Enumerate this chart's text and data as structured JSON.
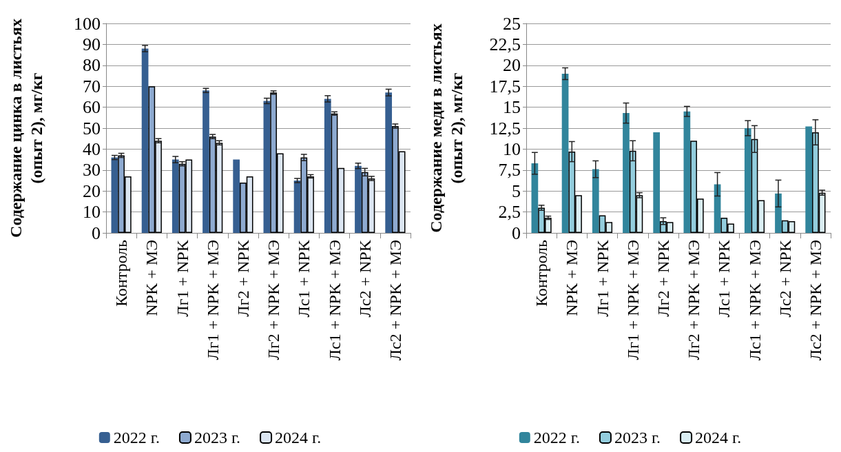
{
  "chart_data": [
    {
      "type": "bar",
      "ylabel": "Содержание цинка в листьях\n(опыт 2), мг/кг",
      "categories": [
        "Контроль",
        "NPK + МЭ",
        "Лг1 + NPK",
        "Лг1 + NPK + МЭ",
        "Лг2 + NPK",
        "Лг2 + NPK + МЭ",
        "Лс1 + NPK",
        "Лс1 + NPK + МЭ",
        "Лс2 + NPK",
        "Лс2 + NPK + МЭ"
      ],
      "series": [
        {
          "name": "2022 г.",
          "color": "#365f91",
          "values": [
            36,
            88,
            35,
            68,
            35,
            63,
            25,
            64,
            32,
            67
          ],
          "errors": [
            1,
            1.5,
            1.5,
            1,
            null,
            1.3,
            1,
            1.5,
            1.3,
            1.6
          ]
        },
        {
          "name": "2023 г.",
          "color": "#8eaad0",
          "values": [
            37,
            70,
            33,
            46,
            24,
            67,
            36,
            57,
            29,
            51
          ],
          "errors": [
            1,
            null,
            1,
            1,
            null,
            0.8,
            1.5,
            0.8,
            1.8,
            1
          ]
        },
        {
          "name": "2024 г.",
          "color": "#dce6f2",
          "values": [
            27,
            44,
            35,
            43,
            27,
            38,
            27,
            31,
            26,
            39
          ],
          "errors": [
            null,
            1,
            null,
            1,
            null,
            null,
            0.8,
            null,
            1,
            null
          ]
        }
      ],
      "ylim": [
        0,
        100
      ],
      "yticks": [
        0,
        10,
        20,
        30,
        40,
        50,
        60,
        70,
        80,
        90,
        100
      ],
      "grid": "y",
      "legend": "bottom"
    },
    {
      "type": "bar",
      "ylabel": "Содержание меди в листьях\n(опыт 2), мг/кг",
      "categories": [
        "Контроль",
        "NPK + МЭ",
        "Лг1 + NPK",
        "Лг1 + NPK + МЭ",
        "Лг2 + NPK",
        "Лг2 + NPK + МЭ",
        "Лс1 + NPK",
        "Лс1 + NPK + МЭ",
        "Лс2 + NPK",
        "Лс2 + NPK + МЭ"
      ],
      "series": [
        {
          "name": "2022 г.",
          "color": "#31859c",
          "values": [
            8.3,
            19.0,
            7.6,
            14.3,
            12.0,
            14.5,
            5.8,
            12.5,
            4.7,
            12.7
          ],
          "errors": [
            1.3,
            0.7,
            1.0,
            1.2,
            null,
            0.6,
            1.4,
            0.9,
            1.6,
            null
          ]
        },
        {
          "name": "2023 г.",
          "color": "#93cddd",
          "values": [
            3.0,
            9.7,
            2.1,
            9.8,
            1.4,
            11.0,
            1.8,
            11.2,
            1.5,
            12.0
          ],
          "errors": [
            0.3,
            1.2,
            null,
            1.2,
            0.4,
            null,
            null,
            1.6,
            null,
            1.5
          ]
        },
        {
          "name": "2024 г.",
          "color": "#daeef3",
          "values": [
            1.8,
            4.5,
            1.3,
            4.5,
            1.3,
            4.1,
            1.1,
            3.9,
            1.4,
            4.8
          ],
          "errors": [
            0.2,
            null,
            null,
            0.3,
            null,
            null,
            null,
            null,
            null,
            0.3
          ]
        }
      ],
      "ylim": [
        0,
        25
      ],
      "yticks": [
        0,
        {
          "value": 2.5,
          "label": "2,5"
        },
        5,
        {
          "value": 7.5,
          "label": "7,5"
        },
        10,
        {
          "value": 12.5,
          "label": "12,5"
        },
        15,
        {
          "value": 17.5,
          "label": "17,5"
        },
        20,
        {
          "value": 22.5,
          "label": "22,5"
        },
        25
      ],
      "grid": "y",
      "legend": "bottom"
    }
  ]
}
